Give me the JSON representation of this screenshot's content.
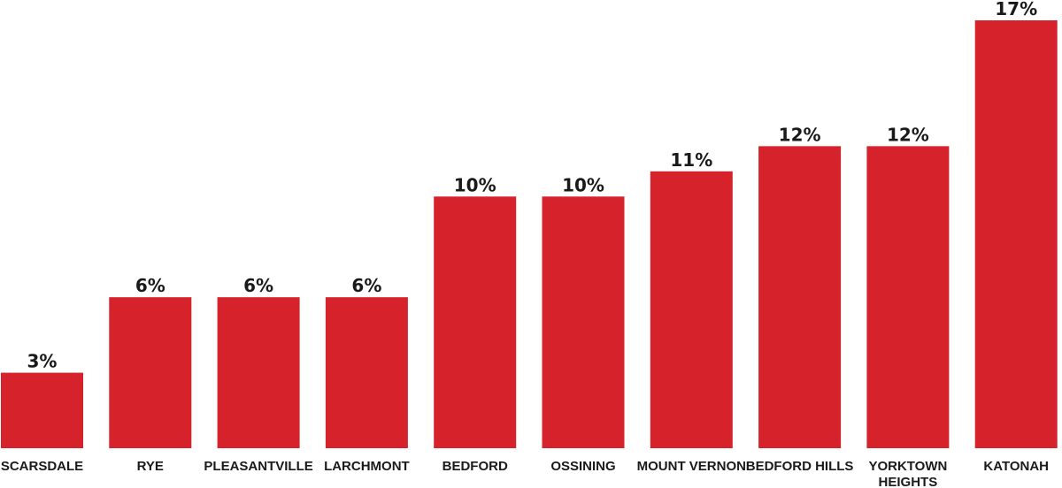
{
  "chart_data": {
    "type": "bar",
    "categories": [
      [
        "SCARSDALE"
      ],
      [
        "RYE"
      ],
      [
        "PLEASANTVILLE"
      ],
      [
        "LARCHMONT"
      ],
      [
        "BEDFORD"
      ],
      [
        "OSSINING"
      ],
      [
        "MOUNT VERNON"
      ],
      [
        "BEDFORD HILLS"
      ],
      [
        "YORKTOWN",
        "HEIGHTS"
      ],
      [
        "KATONAH"
      ]
    ],
    "values": [
      3,
      6,
      6,
      6,
      10,
      10,
      11,
      12,
      12,
      17
    ],
    "value_labels": [
      "3%",
      "6%",
      "6%",
      "6%",
      "10%",
      "10%",
      "11%",
      "12%",
      "12%",
      "17%"
    ],
    "title": "",
    "xlabel": "",
    "ylabel": "",
    "ylim": [
      0,
      17
    ],
    "grid": false,
    "bar_color": "#d6232b"
  }
}
